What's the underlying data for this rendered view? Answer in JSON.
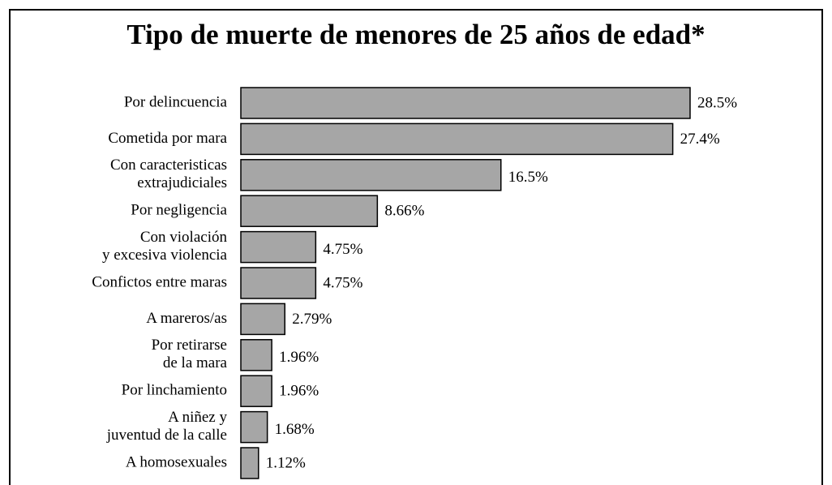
{
  "chart_data": {
    "type": "bar",
    "orientation": "horizontal",
    "title": "Tipo de muerte de menores de 25 años de edad*",
    "categories": [
      [
        "Por delincuencia"
      ],
      [
        "Cometida por mara"
      ],
      [
        "Con caracteristicas",
        "extrajudiciales"
      ],
      [
        "Por negligencia"
      ],
      [
        "Con violación",
        "y excesiva violencia"
      ],
      [
        "Confictos entre maras"
      ],
      [
        "A mareros/as"
      ],
      [
        "Por retirarse",
        "de la mara"
      ],
      [
        "Por linchamiento"
      ],
      [
        "A niñez y",
        "juventud de la calle"
      ],
      [
        "A homosexuales"
      ]
    ],
    "values": [
      28.5,
      27.4,
      16.5,
      8.66,
      4.75,
      4.75,
      2.79,
      1.96,
      1.96,
      1.68,
      1.12
    ],
    "value_labels": [
      "28.5%",
      "27.4%",
      "16.5%",
      "8.66%",
      "4.75%",
      "4.75%",
      "2.79%",
      "1.96%",
      "1.96%",
      "1.68%",
      "1.12%"
    ],
    "color": "#a6a6a6"
  }
}
